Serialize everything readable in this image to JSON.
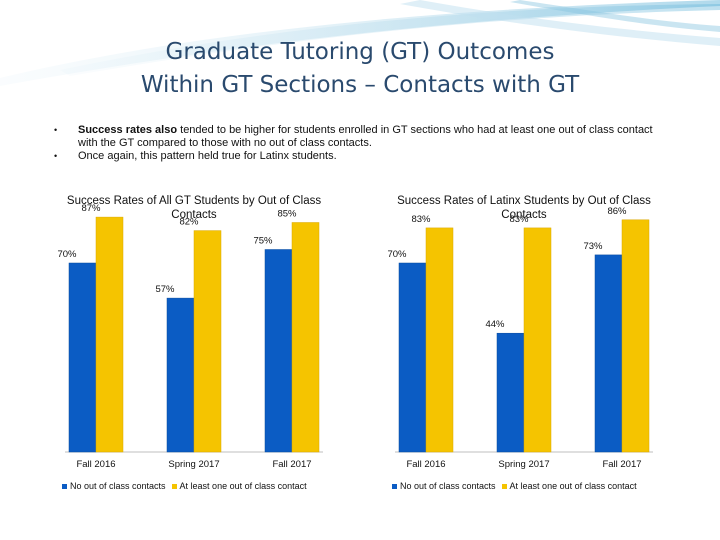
{
  "slide": {
    "title_line1": "Graduate Tutoring (GT) Outcomes",
    "title_line2": "Within GT Sections – Contacts with GT",
    "bullet1_bold": "Success rates also",
    "bullet1_rest": " tended to be higher for students enrolled in GT sections who had at least one out of class contact with the GT compared to those with no out of class contacts.",
    "bullet2": "Once again, this pattern held true for Latinx students.",
    "bullet_symbol": "•"
  },
  "colors": {
    "series_no_contact": "#0b5cc4",
    "series_contact": "#f5c400",
    "title": "#2a4a6e"
  },
  "chart_data": [
    {
      "type": "bar",
      "title": "Success Rates of All GT Students by Out of Class Contacts",
      "categories": [
        "Fall 2016",
        "Spring 2017",
        "Fall 2017"
      ],
      "series": [
        {
          "name": "No out of class contacts",
          "values": [
            70,
            57,
            75
          ],
          "labels": [
            "70%",
            "57%",
            "75%"
          ]
        },
        {
          "name": "At least one out of class contact",
          "values": [
            87,
            82,
            85
          ],
          "labels": [
            "87%",
            "82%",
            "85%"
          ]
        }
      ],
      "ylim": [
        0,
        100
      ],
      "grid": false,
      "legend": "bottom"
    },
    {
      "type": "bar",
      "title": "Success Rates of Latinx Students by Out of Class Contacts",
      "categories": [
        "Fall 2016",
        "Spring 2017",
        "Fall 2017"
      ],
      "series": [
        {
          "name": "No out of class contacts",
          "values": [
            70,
            44,
            73
          ],
          "labels": [
            "70%",
            "44%",
            "73%"
          ]
        },
        {
          "name": "At least one out of class contact",
          "values": [
            83,
            83,
            86
          ],
          "labels": [
            "83%",
            "83%",
            "86%"
          ]
        }
      ],
      "ylim": [
        0,
        100
      ],
      "grid": false,
      "legend": "bottom"
    }
  ]
}
